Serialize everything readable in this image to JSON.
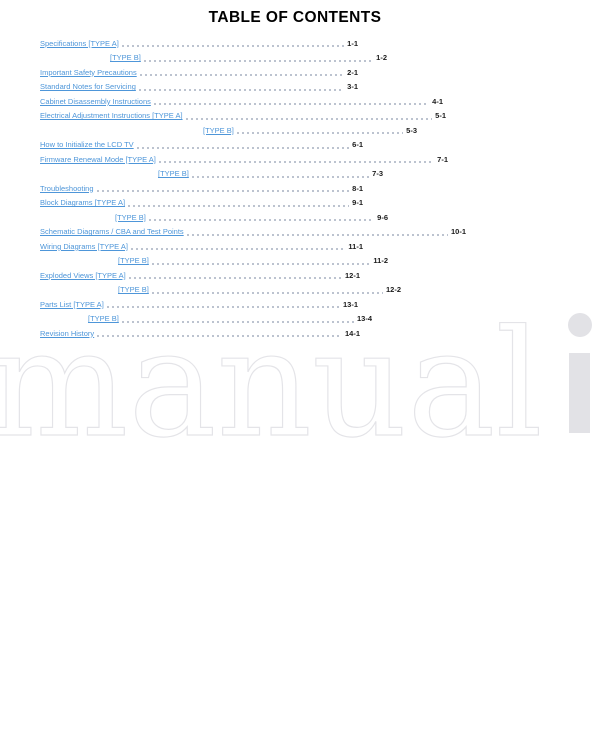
{
  "page": {
    "title": "TABLE OF CONTENTS"
  },
  "colors": {
    "link_blue": "#4e96d9",
    "page_number": "#1a1a1a",
    "leader_dot": "#aab2c2",
    "title": "#000000",
    "watermark_outline": "#e4e4e8",
    "watermark_solid": "#e2e2e6",
    "background": "#ffffff"
  },
  "watermark": {
    "outline_text": "manual",
    "solid_letter": "i"
  },
  "toc": {
    "entries": [
      {
        "label": "Specifications [TYPE A]",
        "page": "1-1"
      },
      {
        "label": "[TYPE B]",
        "page": "1-2"
      },
      {
        "label": "Important Safety Precautions",
        "page": "2-1"
      },
      {
        "label": "Standard Notes for Servicing",
        "page": "3-1"
      },
      {
        "label": "Cabinet Disassembly Instructions",
        "page": "4-1"
      },
      {
        "label": "Electrical Adjustment Instructions [TYPE A]",
        "page": "5-1"
      },
      {
        "label": "[TYPE B]",
        "page": "5-3"
      },
      {
        "label": "How to Initialize the LCD TV",
        "page": "6-1"
      },
      {
        "label": "Firmware Renewal Mode [TYPE A]",
        "page": "7-1"
      },
      {
        "label": "[TYPE B]",
        "page": "7-3"
      },
      {
        "label": "Troubleshooting",
        "page": "8-1"
      },
      {
        "label": "Block Diagrams [TYPE A]",
        "page": "9-1"
      },
      {
        "label": "[TYPE B]",
        "page": "9-6"
      },
      {
        "label": "Schematic Diagrams / CBA and Test Points",
        "page": "10-1"
      },
      {
        "label": "Wiring Diagrams [TYPE A]",
        "page": "11-1"
      },
      {
        "label": "[TYPE B]",
        "page": "11-2"
      },
      {
        "label": "Exploded Views [TYPE A]",
        "page": "12-1"
      },
      {
        "label": "[TYPE B]",
        "page": "12-2"
      },
      {
        "label": "Parts List [TYPE A]",
        "page": "13-1"
      },
      {
        "label": "[TYPE B]",
        "page": "13-4"
      },
      {
        "label": "Revision History",
        "page": "14-1"
      }
    ]
  }
}
